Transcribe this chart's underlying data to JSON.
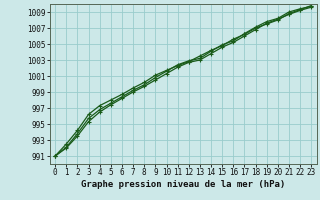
{
  "xlabel": "Graphe pression niveau de la mer (hPa)",
  "ylim": [
    990,
    1010
  ],
  "xlim": [
    -0.5,
    23.5
  ],
  "yticks": [
    991,
    993,
    995,
    997,
    999,
    1001,
    1003,
    1005,
    1007,
    1009
  ],
  "xticks": [
    0,
    1,
    2,
    3,
    4,
    5,
    6,
    7,
    8,
    9,
    10,
    11,
    12,
    13,
    14,
    15,
    16,
    17,
    18,
    19,
    20,
    21,
    22,
    23
  ],
  "bg_color": "#cce8e8",
  "grid_color": "#99cccc",
  "line_color": "#1a5c1a",
  "line1": [
    991.0,
    992.1,
    993.8,
    995.7,
    996.8,
    997.6,
    998.4,
    999.2,
    999.9,
    1000.8,
    1001.6,
    1002.4,
    1002.9,
    1003.2,
    1004.1,
    1004.9,
    1005.4,
    1006.3,
    1007.1,
    1007.8,
    1008.2,
    1009.0,
    1009.4,
    1009.7
  ],
  "line2": [
    991.0,
    992.5,
    994.2,
    996.2,
    997.3,
    998.0,
    998.7,
    999.5,
    1000.2,
    1001.1,
    1001.7,
    1002.3,
    1002.8,
    1003.5,
    1004.2,
    1004.8,
    1005.6,
    1006.2,
    1007.0,
    1007.5,
    1008.0,
    1008.8,
    1009.3,
    1009.8
  ],
  "line3": [
    991.0,
    992.0,
    993.5,
    995.3,
    996.5,
    997.4,
    998.2,
    999.0,
    999.7,
    1000.5,
    1001.3,
    1002.1,
    1002.7,
    1003.0,
    1003.8,
    1004.6,
    1005.2,
    1006.0,
    1006.8,
    1007.6,
    1008.1,
    1008.7,
    1009.2,
    1009.6
  ],
  "marker": "+",
  "markersize": 3.5,
  "linewidth": 0.9,
  "tick_fontsize": 5.5,
  "xlabel_fontsize": 6.5
}
